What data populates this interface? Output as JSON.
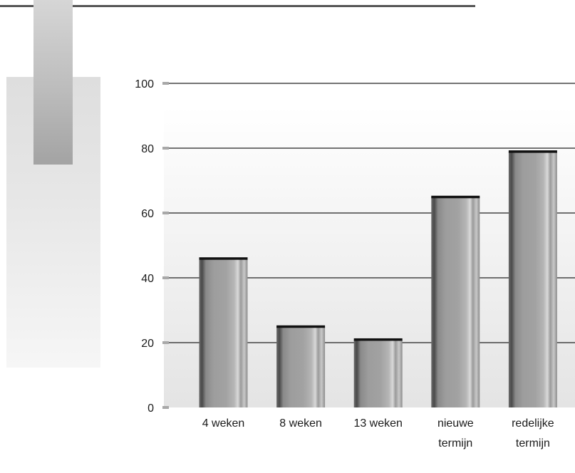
{
  "chart_data": {
    "type": "bar",
    "title": "",
    "xlabel": "",
    "ylabel": "",
    "categories": [
      [
        "4 weken"
      ],
      [
        "8 weken"
      ],
      [
        "13 weken"
      ],
      [
        "nieuwe",
        "termijn"
      ],
      [
        "redelijke",
        "termijn"
      ]
    ],
    "values": [
      46,
      25,
      21,
      65,
      79
    ],
    "ylim": [
      0,
      100
    ],
    "yticks": [
      "0",
      "20",
      "40",
      "60",
      "80",
      "100"
    ],
    "grid": true,
    "legend": "none"
  },
  "colors": {
    "bar_base": "#9e9e9e",
    "bar_cap": "#111111",
    "gridline": "#222222",
    "tick_mark": "#a8a8a8",
    "top_rule": "#555555"
  }
}
